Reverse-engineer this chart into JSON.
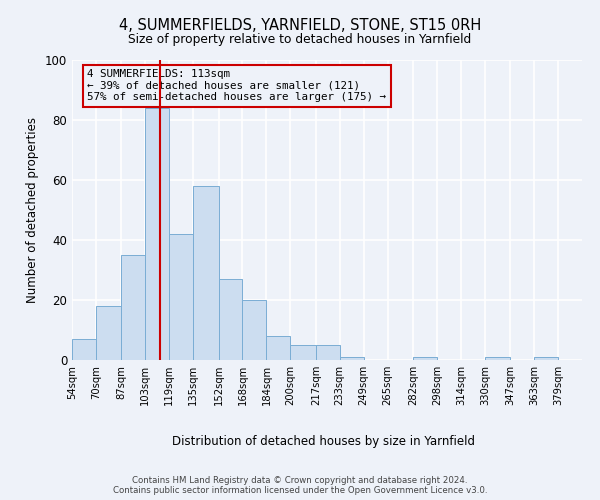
{
  "title": "4, SUMMERFIELDS, YARNFIELD, STONE, ST15 0RH",
  "subtitle": "Size of property relative to detached houses in Yarnfield",
  "xlabel": "Distribution of detached houses by size in Yarnfield",
  "ylabel": "Number of detached properties",
  "bar_color": "#ccddf0",
  "bar_edge_color": "#7aadd4",
  "background_color": "#eef2f9",
  "grid_color": "#ffffff",
  "bin_labels": [
    "54sqm",
    "70sqm",
    "87sqm",
    "103sqm",
    "119sqm",
    "135sqm",
    "152sqm",
    "168sqm",
    "184sqm",
    "200sqm",
    "217sqm",
    "233sqm",
    "249sqm",
    "265sqm",
    "282sqm",
    "298sqm",
    "314sqm",
    "330sqm",
    "347sqm",
    "363sqm",
    "379sqm"
  ],
  "bin_edges": [
    54,
    70,
    87,
    103,
    119,
    135,
    152,
    168,
    184,
    200,
    217,
    233,
    249,
    265,
    282,
    298,
    314,
    330,
    347,
    363,
    379,
    395
  ],
  "bar_heights": [
    7,
    18,
    35,
    84,
    42,
    58,
    27,
    20,
    8,
    5,
    5,
    1,
    0,
    0,
    1,
    0,
    0,
    1,
    0,
    1,
    0
  ],
  "vline_x": 113,
  "vline_color": "#cc0000",
  "annotation_text": "4 SUMMERFIELDS: 113sqm\n← 39% of detached houses are smaller (121)\n57% of semi-detached houses are larger (175) →",
  "annotation_box_edge": "#cc0000",
  "ylim": [
    0,
    100
  ],
  "yticks": [
    0,
    20,
    40,
    60,
    80,
    100
  ],
  "footnote": "Contains HM Land Registry data © Crown copyright and database right 2024.\nContains public sector information licensed under the Open Government Licence v3.0."
}
